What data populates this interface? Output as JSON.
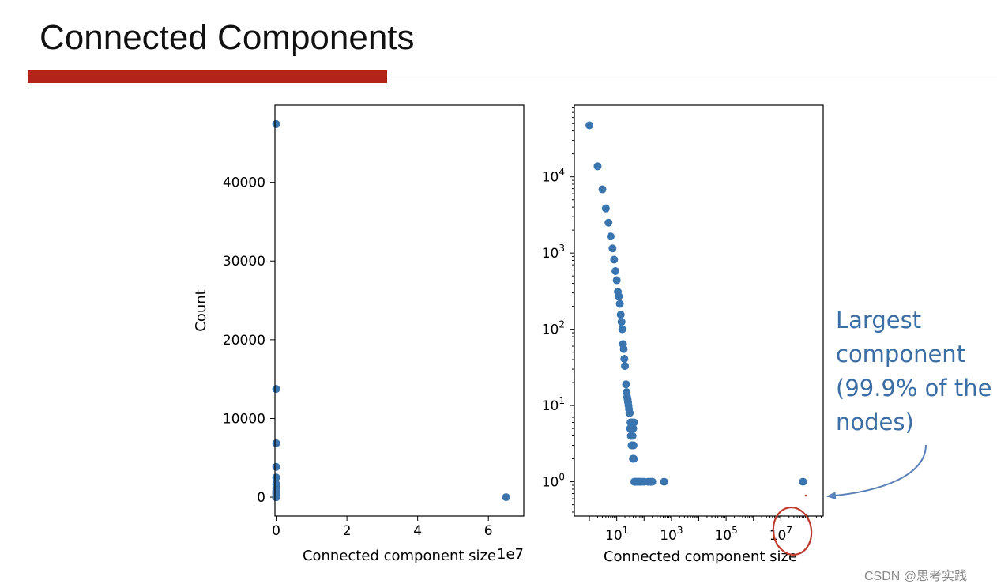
{
  "slide": {
    "title": "Connected Components",
    "annotation": [
      "Largest",
      "component",
      "(99.9% of the",
      "nodes)"
    ],
    "watermark": "CSDN @思考实践",
    "accent_color": "#b3231a",
    "annotation_color": "#3b6ea5",
    "marker_color": "#3a75b0",
    "circle_color": "#c0392b"
  },
  "chart_data": [
    {
      "type": "scatter",
      "xscale": "linear",
      "yscale": "linear",
      "xlabel": "Connected component size",
      "ylabel": "Count",
      "offset_text": "1e7",
      "xlim": [
        -350000,
        70000000
      ],
      "ylim": [
        -2400,
        49800
      ],
      "xticks": [
        0,
        20000000,
        40000000,
        60000000
      ],
      "xtick_labels": [
        "0",
        "2",
        "4",
        "6"
      ],
      "yticks": [
        0,
        10000,
        20000,
        30000,
        40000
      ],
      "ytick_labels": [
        "0",
        "10000",
        "20000",
        "30000",
        "40000"
      ],
      "points": [
        [
          1,
          47400
        ],
        [
          2,
          13750
        ],
        [
          3,
          6850
        ],
        [
          4,
          3850
        ],
        [
          5,
          2500
        ],
        [
          6,
          1650
        ],
        [
          7,
          1150
        ],
        [
          8,
          800
        ],
        [
          9,
          560
        ],
        [
          10,
          420
        ],
        [
          15,
          150
        ],
        [
          20,
          60
        ],
        [
          30,
          20
        ],
        [
          40,
          10
        ],
        [
          60,
          5
        ],
        [
          100,
          3
        ],
        [
          200,
          1
        ],
        [
          65000000,
          1
        ]
      ]
    },
    {
      "type": "scatter",
      "xscale": "log",
      "yscale": "log",
      "xlabel": "Connected component size",
      "ylabel": "",
      "xlim_log10": [
        -0.55,
        8.55
      ],
      "ylim_log10": [
        -0.45,
        4.94
      ],
      "xtick_exponents": [
        1,
        3,
        5,
        7
      ],
      "ytick_exponents": [
        0,
        1,
        2,
        3,
        4
      ],
      "tick_base": "10",
      "points": [
        [
          1,
          47400
        ],
        [
          2,
          13750
        ],
        [
          3,
          6850
        ],
        [
          4,
          3850
        ],
        [
          5,
          2500
        ],
        [
          6,
          1650
        ],
        [
          7,
          1150
        ],
        [
          8,
          820
        ],
        [
          9,
          580
        ],
        [
          10,
          440
        ],
        [
          11,
          310
        ],
        [
          12,
          270
        ],
        [
          13,
          215
        ],
        [
          14,
          155
        ],
        [
          15,
          125
        ],
        [
          16,
          100
        ],
        [
          17,
          64
        ],
        [
          18,
          55
        ],
        [
          19,
          41
        ],
        [
          20,
          33
        ],
        [
          22,
          19
        ],
        [
          23,
          15
        ],
        [
          24,
          13
        ],
        [
          25,
          12
        ],
        [
          26,
          11
        ],
        [
          27,
          10
        ],
        [
          28,
          9
        ],
        [
          29,
          8
        ],
        [
          30,
          8
        ],
        [
          31,
          5
        ],
        [
          32,
          6
        ],
        [
          33,
          4
        ],
        [
          34,
          5
        ],
        [
          35,
          3
        ],
        [
          36,
          6
        ],
        [
          37,
          3
        ],
        [
          38,
          4
        ],
        [
          39,
          2
        ],
        [
          40,
          5
        ],
        [
          41,
          3
        ],
        [
          42,
          2
        ],
        [
          43,
          6
        ],
        [
          44,
          1
        ],
        [
          47,
          1
        ],
        [
          52,
          1
        ],
        [
          60,
          1
        ],
        [
          68,
          1
        ],
        [
          80,
          1
        ],
        [
          100,
          1
        ],
        [
          140,
          1
        ],
        [
          170,
          1
        ],
        [
          200,
          1
        ],
        [
          540,
          1
        ],
        [
          65000000,
          1
        ]
      ]
    }
  ]
}
